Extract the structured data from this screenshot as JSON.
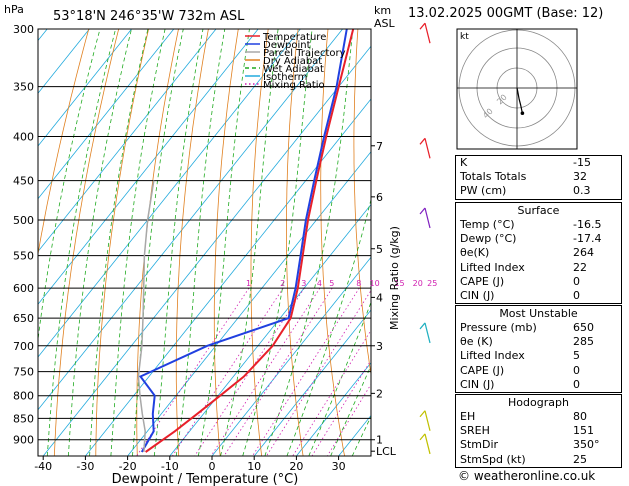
{
  "chart_data": [
    {
      "type": "line",
      "title": "53°18'N  246°35'W  732m  ASL",
      "pressure_axis_label": "hPa",
      "xlabel": "Dewpoint / Temperature (°C)",
      "km_axis_label": [
        "km",
        "ASL"
      ],
      "mixing_ratio_label": "Mixing Ratio (g/kg)",
      "pressure_ticks": [
        300,
        350,
        400,
        450,
        500,
        550,
        600,
        650,
        700,
        750,
        800,
        850,
        900
      ],
      "temperature_ticks": [
        -40,
        -30,
        -20,
        -10,
        0,
        10,
        20,
        30
      ],
      "km_ticks": [
        {
          "label": "7",
          "p": 410
        },
        {
          "label": "6",
          "p": 470
        },
        {
          "label": "5",
          "p": 540
        },
        {
          "label": "4",
          "p": 615
        },
        {
          "label": "3",
          "p": 700
        },
        {
          "label": "2",
          "p": 795
        },
        {
          "label": "1",
          "p": 900
        },
        {
          "label": "LCL",
          "p": 928
        }
      ],
      "mixing_ratio_ticks": [
        "1",
        "2",
        "3",
        "4",
        "5",
        "8",
        "10",
        "15",
        "20",
        "25"
      ],
      "legend": [
        "Temperature",
        "Dewpoint",
        "Parcel Trajectory",
        "Dry Adiabat",
        "Wet Adiabat",
        "Isotherm",
        "Mixing Ratio"
      ],
      "legend_position": "top-right",
      "series": [
        {
          "name": "Temperature",
          "color": "#e8202a",
          "points": [
            [
              -16.5,
              930
            ],
            [
              -13.5,
              880
            ],
            [
              -11.5,
              840
            ],
            [
              -9.5,
              800
            ],
            [
              -7.5,
              760
            ],
            [
              -6.5,
              700
            ],
            [
              -7.5,
              650
            ],
            [
              -11.5,
              600
            ],
            [
              -16.5,
              550
            ],
            [
              -22,
              500
            ],
            [
              -27.5,
              450
            ],
            [
              -33.5,
              400
            ],
            [
              -40,
              350
            ],
            [
              -47.5,
              300
            ]
          ]
        },
        {
          "name": "Dewpoint",
          "color": "#2040e0",
          "points": [
            [
              -17.4,
              930
            ],
            [
              -18.5,
              880
            ],
            [
              -22,
              840
            ],
            [
              -25,
              800
            ],
            [
              -32,
              760
            ],
            [
              -22,
              700
            ],
            [
              -8,
              650
            ],
            [
              -12,
              600
            ],
            [
              -17,
              550
            ],
            [
              -22.5,
              500
            ],
            [
              -28,
              450
            ],
            [
              -34,
              400
            ],
            [
              -40.5,
              350
            ],
            [
              -49,
              300
            ]
          ]
        },
        {
          "name": "Parcel Trajectory",
          "color": "#a8a8a8",
          "points": [
            [
              -16.9,
              930
            ],
            [
              -20.5,
              880
            ],
            [
              -24.5,
              840
            ],
            [
              -28.5,
              800
            ],
            [
              -32.5,
              760
            ],
            [
              -37.5,
              700
            ],
            [
              -42.5,
              650
            ],
            [
              -48,
              600
            ],
            [
              -54,
              550
            ],
            [
              -60,
              500
            ],
            [
              -66,
              450
            ]
          ]
        }
      ]
    },
    {
      "type": "scatter",
      "title": "kt",
      "ring_labels": [
        "20",
        "40"
      ],
      "hodograph_points": [
        [
          0,
          0
        ],
        [
          0.5,
          -1
        ],
        [
          1.8,
          -4
        ],
        [
          3.0,
          -6
        ],
        [
          4.5,
          -9
        ]
      ],
      "color": "#000000"
    }
  ],
  "datetime": "13.02.2025  00GMT  (Base: 12)",
  "indices": [
    {
      "label": "K",
      "value": "-15"
    },
    {
      "label": "Totals Totals",
      "value": "32"
    },
    {
      "label": "PW (cm)",
      "value": "0.3"
    }
  ],
  "surface": {
    "title": "Surface",
    "rows": [
      {
        "label": "Temp (°C)",
        "value": "-16.5"
      },
      {
        "label": "Dewp (°C)",
        "value": "-17.4"
      },
      {
        "label": "θe(K)",
        "value": "264"
      },
      {
        "label": "Lifted Index",
        "value": "22"
      },
      {
        "label": "CAPE (J)",
        "value": "0"
      },
      {
        "label": "CIN (J)",
        "value": "0"
      }
    ]
  },
  "most_unstable": {
    "title": "Most Unstable",
    "rows": [
      {
        "label": "Pressure (mb)",
        "value": "650"
      },
      {
        "label": "θe (K)",
        "value": "285"
      },
      {
        "label": "Lifted Index",
        "value": "5"
      },
      {
        "label": "CAPE (J)",
        "value": "0"
      },
      {
        "label": "CIN (J)",
        "value": "0"
      }
    ]
  },
  "hodograph_table": {
    "title": "Hodograph",
    "rows": [
      {
        "label": "EH",
        "value": "80"
      },
      {
        "label": "SREH",
        "value": "151"
      },
      {
        "label": "StmDir",
        "value": "350°"
      },
      {
        "label": "StmSpd (kt)",
        "value": "25"
      }
    ]
  },
  "copyright": "© weatheronline.co.uk"
}
